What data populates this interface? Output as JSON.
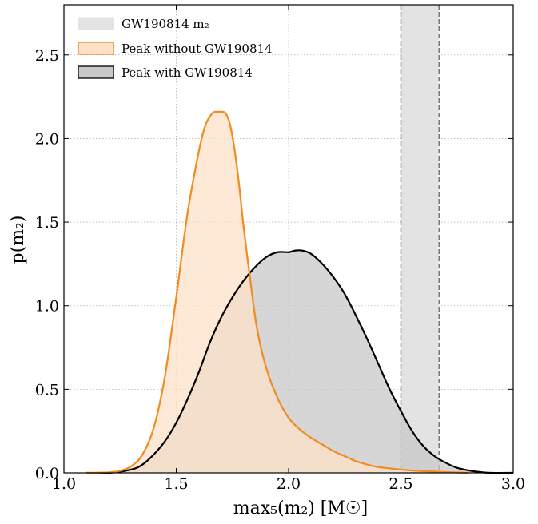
{
  "chart_data": {
    "type": "area",
    "xlabel": "max₅(m₂) [M☉]",
    "ylabel": "p(m₂)",
    "xlim": [
      1.0,
      3.0
    ],
    "ylim": [
      0.0,
      2.8
    ],
    "x_ticks": [
      "1.0",
      "1.5",
      "2.0",
      "2.5",
      "3.0"
    ],
    "y_ticks": [
      "0.0",
      "0.5",
      "1.0",
      "1.5",
      "2.0",
      "2.5"
    ],
    "grid": true,
    "legend_position": "top-left",
    "band": {
      "name": "GW190814 m₂",
      "x_range": [
        2.5,
        2.67
      ],
      "color": "#e3e3e3",
      "edge_color": "#777777"
    },
    "series": [
      {
        "name": "Peak without GW190814",
        "fill": "#fde0c8",
        "line": "#f28a1e",
        "x": [
          1.1,
          1.2,
          1.25,
          1.3,
          1.35,
          1.4,
          1.45,
          1.5,
          1.55,
          1.6,
          1.63,
          1.66,
          1.68,
          1.7,
          1.72,
          1.74,
          1.76,
          1.78,
          1.8,
          1.83,
          1.86,
          1.9,
          1.95,
          2.0,
          2.05,
          2.1,
          2.15,
          2.2,
          2.25,
          2.3,
          2.35,
          2.4,
          2.5,
          2.6,
          2.7,
          2.8
        ],
        "y": [
          0.0,
          0.003,
          0.012,
          0.04,
          0.11,
          0.27,
          0.58,
          1.05,
          1.55,
          1.92,
          2.08,
          2.15,
          2.16,
          2.16,
          2.15,
          2.08,
          1.93,
          1.72,
          1.47,
          1.15,
          0.86,
          0.63,
          0.45,
          0.33,
          0.26,
          0.21,
          0.17,
          0.13,
          0.1,
          0.07,
          0.05,
          0.035,
          0.02,
          0.01,
          0.005,
          0.0
        ]
      },
      {
        "name": "Peak with GW190814",
        "fill": "#c8c8c8",
        "line": "#000000",
        "x": [
          1.1,
          1.2,
          1.3,
          1.35,
          1.4,
          1.45,
          1.5,
          1.55,
          1.6,
          1.65,
          1.7,
          1.75,
          1.8,
          1.85,
          1.9,
          1.95,
          2.0,
          2.03,
          2.06,
          2.1,
          2.15,
          2.2,
          2.25,
          2.3,
          2.35,
          2.4,
          2.45,
          2.5,
          2.55,
          2.6,
          2.65,
          2.7,
          2.75,
          2.8,
          2.85,
          2.9,
          3.0
        ],
        "y": [
          0.0,
          0.0,
          0.02,
          0.05,
          0.11,
          0.19,
          0.3,
          0.44,
          0.6,
          0.78,
          0.93,
          1.05,
          1.15,
          1.23,
          1.29,
          1.32,
          1.32,
          1.33,
          1.33,
          1.31,
          1.25,
          1.17,
          1.07,
          0.94,
          0.8,
          0.65,
          0.5,
          0.37,
          0.25,
          0.16,
          0.1,
          0.06,
          0.03,
          0.015,
          0.005,
          0.0,
          0.0
        ]
      }
    ]
  }
}
